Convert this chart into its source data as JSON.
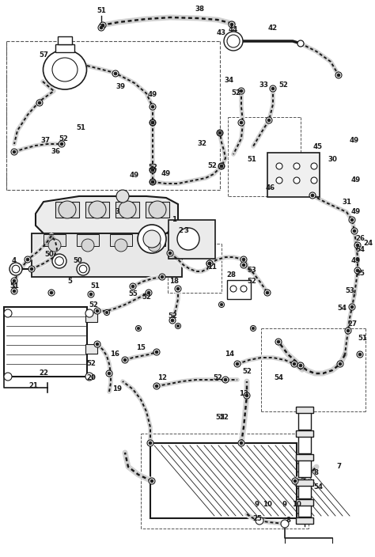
{
  "bg_color": "#f5f5f5",
  "line_color": "#1a1a1a",
  "fig_width": 4.74,
  "fig_height": 7.04,
  "dpi": 100
}
